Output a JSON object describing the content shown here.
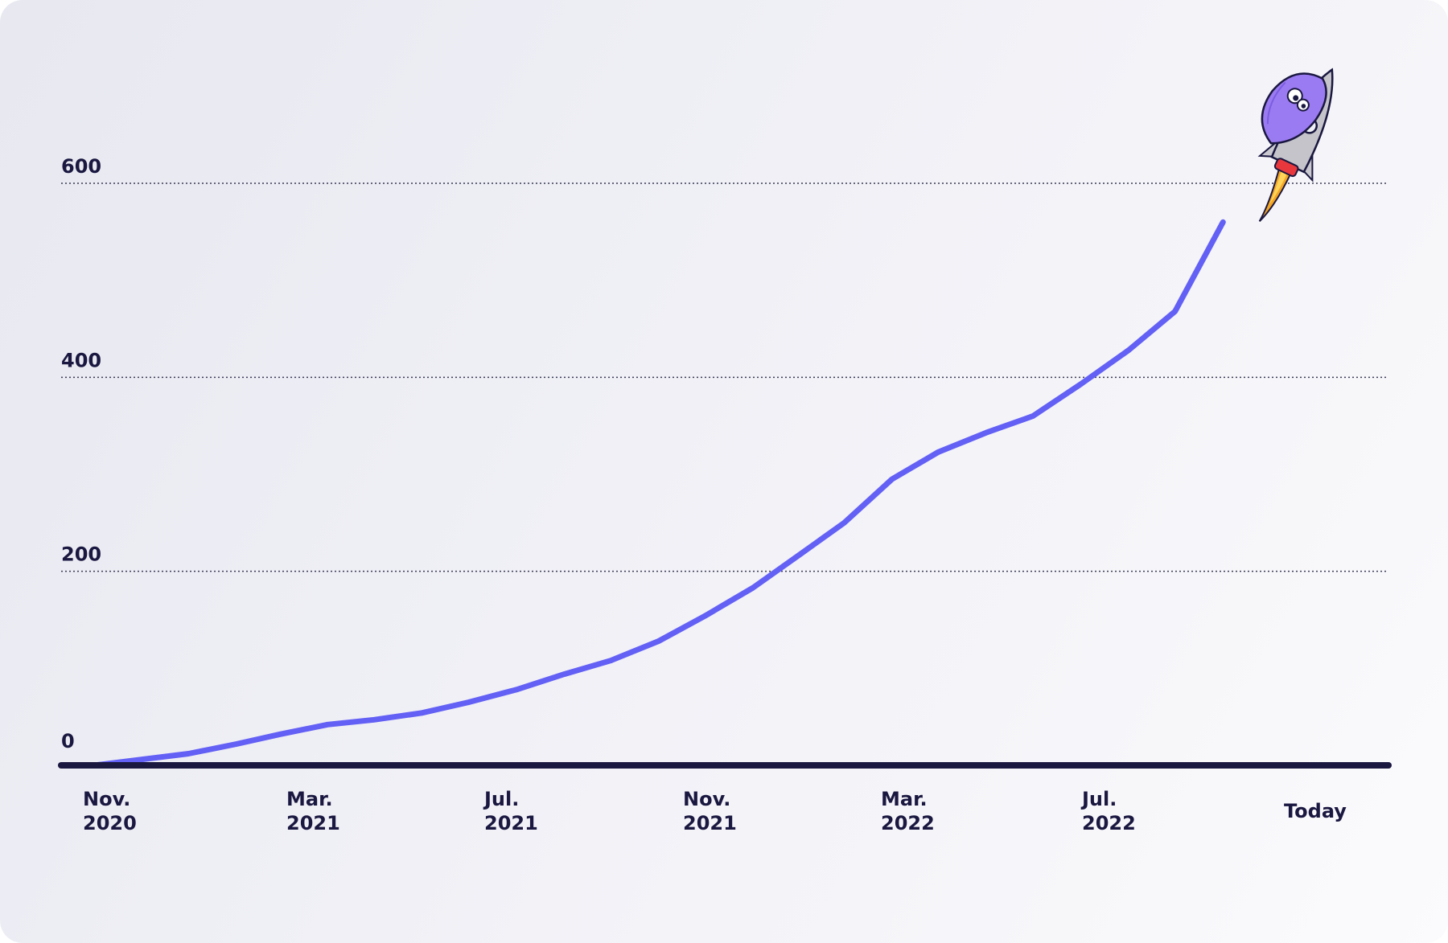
{
  "chart_data": {
    "type": "line",
    "title": "",
    "xlabel": "",
    "ylabel": "",
    "ylim": [
      0,
      600
    ],
    "yticks": [
      0,
      200,
      400,
      600
    ],
    "x_ticks": [
      {
        "line1": "Nov.",
        "line2": "2020"
      },
      {
        "line1": "Mar.",
        "line2": "2021"
      },
      {
        "line1": "Jul.",
        "line2": "2021"
      },
      {
        "line1": "Nov.",
        "line2": "2021"
      },
      {
        "line1": "Mar.",
        "line2": "2022"
      },
      {
        "line1": "Jul.",
        "line2": "2022"
      },
      {
        "line1": "Today",
        "line2": ""
      }
    ],
    "grid": "dotted horizontal",
    "line_color": "#6360f5",
    "axis_color": "#1a1740",
    "series": [
      {
        "points": [
          {
            "x": "2020-11-01",
            "y": 0
          },
          {
            "x": "2021-01-01",
            "y": 12
          },
          {
            "x": "2021-02-01",
            "y": 22
          },
          {
            "x": "2021-03-01",
            "y": 32
          },
          {
            "x": "2021-04-01",
            "y": 42
          },
          {
            "x": "2021-05-01",
            "y": 47
          },
          {
            "x": "2021-06-01",
            "y": 54
          },
          {
            "x": "2021-07-01",
            "y": 65
          },
          {
            "x": "2021-08-01",
            "y": 78
          },
          {
            "x": "2021-09-01",
            "y": 94
          },
          {
            "x": "2021-10-01",
            "y": 108
          },
          {
            "x": "2021-11-01",
            "y": 128
          },
          {
            "x": "2021-12-01",
            "y": 154
          },
          {
            "x": "2022-01-01",
            "y": 183
          },
          {
            "x": "2022-02-01",
            "y": 218
          },
          {
            "x": "2022-03-01",
            "y": 250
          },
          {
            "x": "2022-04-01",
            "y": 295
          },
          {
            "x": "2022-05-01",
            "y": 323
          },
          {
            "x": "2022-06-01",
            "y": 343
          },
          {
            "x": "2022-07-01",
            "y": 360
          },
          {
            "x": "2022-08-01",
            "y": 393
          },
          {
            "x": "2022-09-01",
            "y": 428
          },
          {
            "x": "2022-10-01",
            "y": 468
          },
          {
            "x": "2022-11-01",
            "y": 560
          }
        ]
      }
    ]
  },
  "decoration": {
    "icon": "rocket-mascot-icon"
  }
}
